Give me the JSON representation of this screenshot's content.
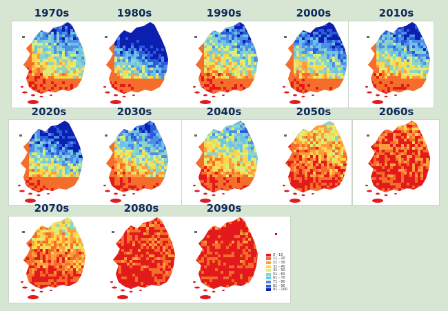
{
  "rows": [
    [
      {
        "decade": "1970s",
        "blue": 0.55
      },
      {
        "decade": "1980s",
        "blue": 0.85
      },
      {
        "decade": "1990s",
        "blue": 0.55
      },
      {
        "decade": "2000s",
        "blue": 0.65
      },
      {
        "decade": "2010s",
        "blue": 0.6
      }
    ],
    [
      {
        "decade": "2020s",
        "blue": 0.7
      },
      {
        "decade": "2030s",
        "blue": 0.55
      },
      {
        "decade": "2040s",
        "blue": 0.45
      },
      {
        "decade": "2050s",
        "blue": 0.25
      },
      {
        "decade": "2060s",
        "blue": 0.12
      }
    ],
    [
      {
        "decade": "2070s",
        "blue": 0.25
      },
      {
        "decade": "2080s",
        "blue": 0.08
      },
      {
        "decade": "2090s",
        "blue": 0.04
      }
    ]
  ],
  "legend": [
    {
      "label": "0 - 10",
      "color": "#e31a1c"
    },
    {
      "label": "11 - 20",
      "color": "#f46d2a"
    },
    {
      "label": "21 - 30",
      "color": "#fd9e3e"
    },
    {
      "label": "31 - 40",
      "color": "#fdd749"
    },
    {
      "label": "41 - 50",
      "color": "#d9ef7a"
    },
    {
      "label": "51 - 60",
      "color": "#8fd3c7"
    },
    {
      "label": "61 - 70",
      "color": "#6ac3e8"
    },
    {
      "label": "71 - 80",
      "color": "#4f8ee6"
    },
    {
      "label": "81 - 90",
      "color": "#2a5bd8"
    },
    {
      "label": "91 - 100",
      "color": "#0b1fb0"
    }
  ]
}
